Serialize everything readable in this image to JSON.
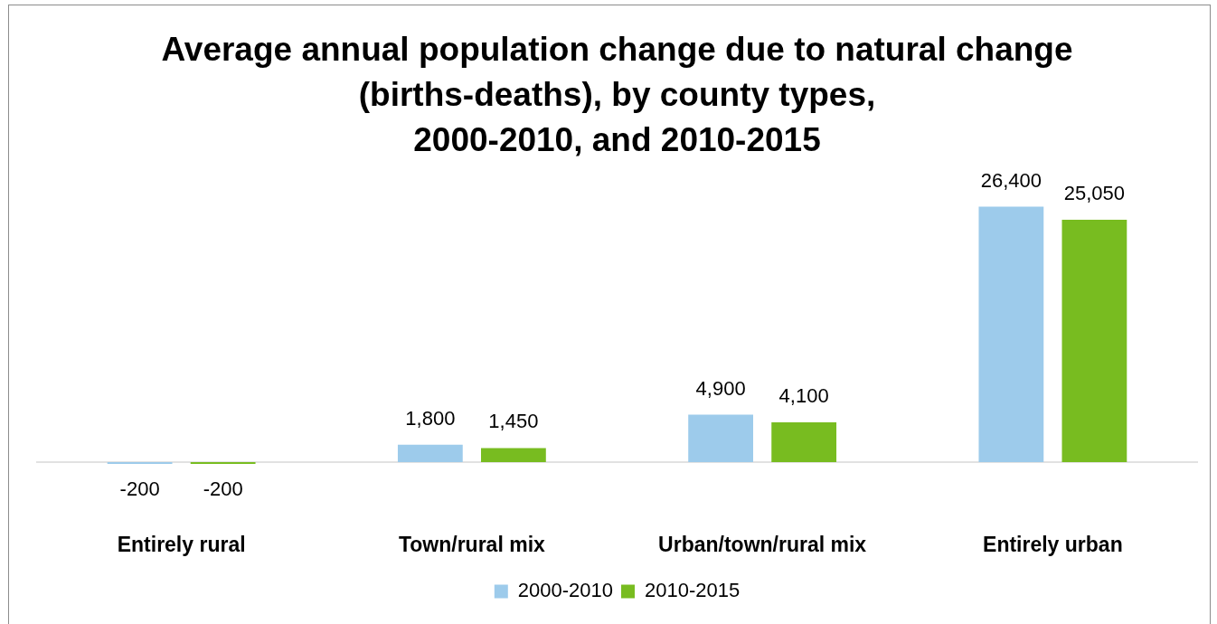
{
  "chart_data": {
    "type": "bar",
    "title": "Average annual population change due to natural change\n(births-deaths), by county types,\n2000-2010, and 2010-2015",
    "categories": [
      "Entirely rural",
      "Town/rural mix",
      "Urban/town/rural mix",
      "Entirely urban"
    ],
    "series": [
      {
        "name": "2000-2010",
        "color": "#9dcbeb",
        "values": [
          -200,
          1800,
          4900,
          26400
        ],
        "value_labels": [
          "-200",
          "1,800",
          "4,900",
          "26,400"
        ]
      },
      {
        "name": "2010-2015",
        "color": "#78bc20",
        "values": [
          -200,
          1450,
          4100,
          25050
        ],
        "value_labels": [
          "-200",
          "1,450",
          "4,100",
          "25,050"
        ]
      }
    ],
    "legend": "bottom"
  }
}
